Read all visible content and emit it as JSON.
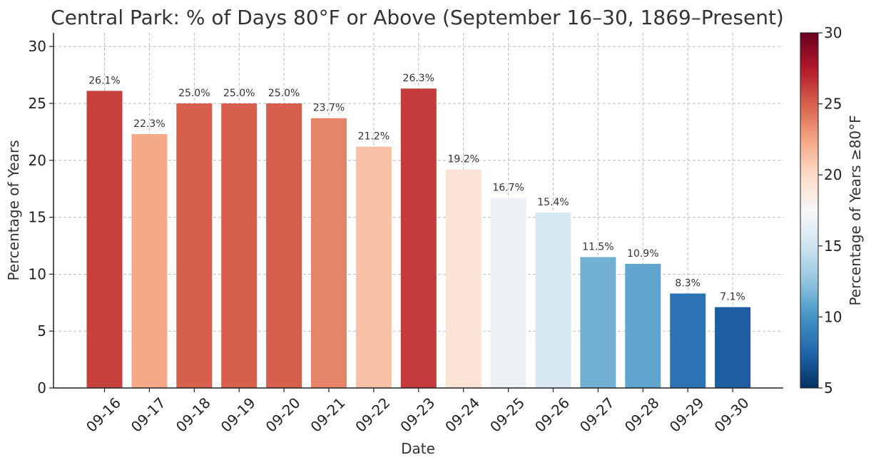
{
  "chart_data": {
    "type": "bar",
    "title": "Central Park: % of Days 80°F or Above (September 16–30, 1869–Present)",
    "xlabel": "Date",
    "ylabel": "Percentage of Years",
    "categories": [
      "09-16",
      "09-17",
      "09-18",
      "09-19",
      "09-20",
      "09-21",
      "09-22",
      "09-23",
      "09-24",
      "09-25",
      "09-26",
      "09-27",
      "09-28",
      "09-29",
      "09-30"
    ],
    "values": [
      26.1,
      22.3,
      25.0,
      25.0,
      25.0,
      23.7,
      21.2,
      26.3,
      19.2,
      16.7,
      15.4,
      11.5,
      10.9,
      8.3,
      7.1
    ],
    "value_labels": [
      "26.1%",
      "22.3%",
      "25.0%",
      "25.0%",
      "25.0%",
      "23.7%",
      "21.2%",
      "26.3%",
      "19.2%",
      "16.7%",
      "15.4%",
      "11.5%",
      "10.9%",
      "8.3%",
      "7.1%"
    ],
    "ylim": [
      0,
      31.2
    ],
    "yticks": [
      0,
      5,
      10,
      15,
      20,
      25,
      30
    ],
    "grid": true,
    "colorbar": {
      "label": "Percentage of Years ≥80°F",
      "range": [
        5,
        30
      ],
      "ticks": [
        5,
        10,
        15,
        20,
        25,
        30
      ],
      "colormap": "RdBu_r"
    }
  }
}
